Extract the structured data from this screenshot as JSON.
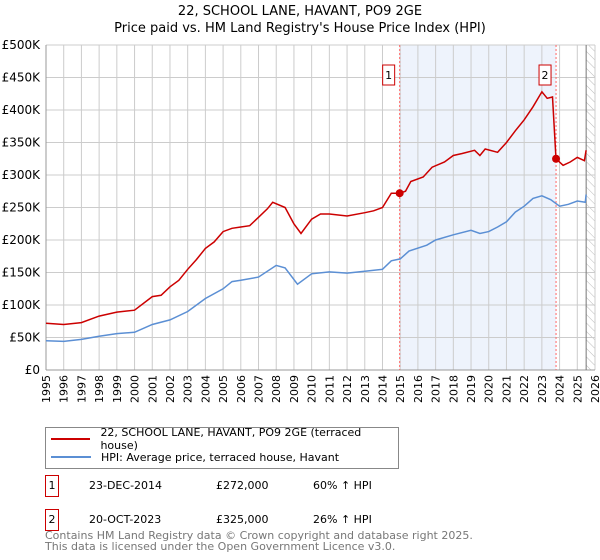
{
  "title": "22, SCHOOL LANE, HAVANT, PO9 2GE",
  "subtitle": "Price paid vs. HM Land Registry's House Price Index (HPI)",
  "colors": {
    "property": "#cc0000",
    "hpi": "#5b8fd4",
    "shade": "#eef3fc",
    "marker_line": "#ff6666"
  },
  "chart_data": {
    "type": "line",
    "title": "22, SCHOOL LANE, HAVANT, PO9 2GE",
    "subtitle": "Price paid vs. HM Land Registry's House Price Index (HPI)",
    "xlim": [
      1995,
      2026
    ],
    "ylim": [
      0,
      500000
    ],
    "x_ticks": [
      "1995",
      "1996",
      "1997",
      "1998",
      "1999",
      "2000",
      "2001",
      "2002",
      "2003",
      "2004",
      "2005",
      "2006",
      "2007",
      "2008",
      "2009",
      "2010",
      "2011",
      "2012",
      "2013",
      "2014",
      "2015",
      "2016",
      "2017",
      "2018",
      "2019",
      "2020",
      "2021",
      "2022",
      "2023",
      "2024",
      "2025",
      "2026"
    ],
    "y_ticks": [
      "£0",
      "£50K",
      "£100K",
      "£150K",
      "£200K",
      "£250K",
      "£300K",
      "£350K",
      "£400K",
      "£450K",
      "£500K"
    ],
    "grid": true,
    "shaded_range": [
      2014.97,
      2023.8
    ],
    "hatched_from": 2025.5,
    "series": [
      {
        "name": "22, SCHOOL LANE, HAVANT, PO9 2GE (terraced house)",
        "color": "#cc0000",
        "x": [
          1995,
          1996,
          1997,
          1998,
          1999,
          2000,
          2001,
          2001.5,
          2002,
          2002.5,
          2003,
          2003.5,
          2004,
          2004.5,
          2005,
          2005.5,
          2006,
          2006.5,
          2007,
          2007.5,
          2007.8,
          2008.5,
          2009,
          2009.4,
          2010,
          2010.5,
          2011,
          2012,
          2013,
          2013.5,
          2014,
          2014.5,
          2014.97,
          2015.3,
          2015.6,
          2016.3,
          2016.8,
          2017.5,
          2018,
          2018.5,
          2019.2,
          2019.5,
          2019.8,
          2020.5,
          2021,
          2021.5,
          2022,
          2022.5,
          2023,
          2023.3,
          2023.6,
          2023.8,
          2024.2,
          2024.6,
          2025,
          2025.4,
          2025.5
        ],
        "y": [
          72000,
          70000,
          73000,
          83000,
          89000,
          92000,
          113000,
          115000,
          128000,
          138000,
          155000,
          170000,
          187000,
          197000,
          213000,
          218000,
          220000,
          222000,
          235000,
          248000,
          258000,
          250000,
          225000,
          210000,
          232000,
          240000,
          240000,
          237000,
          242000,
          245000,
          250000,
          272000,
          272000,
          275000,
          290000,
          297000,
          312000,
          320000,
          330000,
          333000,
          338000,
          330000,
          340000,
          335000,
          350000,
          368000,
          385000,
          405000,
          428000,
          418000,
          420000,
          325000,
          315000,
          320000,
          327000,
          322000,
          338000
        ]
      },
      {
        "name": "HPI: Average price, terraced house, Havant",
        "color": "#5b8fd4",
        "x": [
          1995,
          1996,
          1997,
          1998,
          1999,
          2000,
          2001,
          2002,
          2003,
          2004,
          2005,
          2005.5,
          2006,
          2007,
          2008,
          2008.5,
          2009.2,
          2010,
          2011,
          2012,
          2013,
          2014,
          2014.5,
          2015,
          2015.5,
          2016.5,
          2017,
          2018,
          2019,
          2019.5,
          2020,
          2020.5,
          2021,
          2021.5,
          2022,
          2022.5,
          2023,
          2023.5,
          2024,
          2024.5,
          2025,
          2025.45,
          2025.5
        ],
        "y": [
          45000,
          44000,
          47000,
          52000,
          56000,
          58000,
          70000,
          77000,
          90000,
          110000,
          125000,
          136000,
          138000,
          143000,
          161000,
          157000,
          132000,
          148000,
          151000,
          149000,
          152000,
          155000,
          168000,
          171000,
          183000,
          192000,
          200000,
          208000,
          215000,
          210000,
          213000,
          220000,
          228000,
          243000,
          252000,
          264000,
          268000,
          262000,
          252000,
          255000,
          260000,
          258000,
          270000
        ]
      }
    ],
    "sales": [
      {
        "label": "1",
        "x": 2014.97,
        "y": 272000
      },
      {
        "label": "2",
        "x": 2023.8,
        "y": 325000
      }
    ]
  },
  "legend": {
    "property": "22, SCHOOL LANE, HAVANT, PO9 2GE (terraced house)",
    "hpi": "HPI: Average price, terraced house, Havant"
  },
  "transactions": [
    {
      "num": "1",
      "date": "23-DEC-2014",
      "price": "£272,000",
      "hpi": "60% ↑ HPI"
    },
    {
      "num": "2",
      "date": "20-OCT-2023",
      "price": "£325,000",
      "hpi": "26% ↑ HPI"
    }
  ],
  "footer": {
    "line1": "Contains HM Land Registry data © Crown copyright and database right 2025.",
    "line2": "This data is licensed under the Open Government Licence v3.0."
  }
}
